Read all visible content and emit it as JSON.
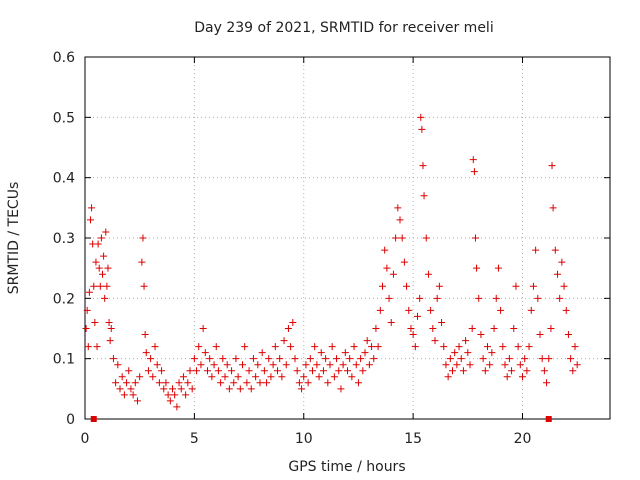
{
  "chart_data": {
    "type": "scatter",
    "title": "Day 239 of 2021, SRMTID for receiver meli",
    "xlabel": "GPS time / hours",
    "ylabel": "SRMTID / TECUs",
    "xlim": [
      0,
      24
    ],
    "ylim": [
      0,
      0.6
    ],
    "xticks": [
      0,
      5,
      10,
      15,
      20
    ],
    "xtick_labels": [
      "0",
      "5",
      "10",
      "15",
      "20"
    ],
    "yticks": [
      0,
      0.1,
      0.2,
      0.3,
      0.4,
      0.5,
      0.6
    ],
    "ytick_labels": [
      "0",
      "0.1",
      "0.2",
      "0.3",
      "0.4",
      "0.5",
      "0.6"
    ],
    "grid": true,
    "marker": "+",
    "color": "#dd0000",
    "gap_markers_x": [
      0.4,
      21.2
    ],
    "series": [
      {
        "name": "SRMTID",
        "points": [
          [
            0.05,
            0.15
          ],
          [
            0.1,
            0.18
          ],
          [
            0.15,
            0.12
          ],
          [
            0.2,
            0.21
          ],
          [
            0.25,
            0.33
          ],
          [
            0.3,
            0.35
          ],
          [
            0.35,
            0.29
          ],
          [
            0.4,
            0.22
          ],
          [
            0.45,
            0.16
          ],
          [
            0.5,
            0.26
          ],
          [
            0.55,
            0.12
          ],
          [
            0.6,
            0.29
          ],
          [
            0.65,
            0.25
          ],
          [
            0.7,
            0.22
          ],
          [
            0.75,
            0.3
          ],
          [
            0.8,
            0.24
          ],
          [
            0.85,
            0.27
          ],
          [
            0.9,
            0.2
          ],
          [
            0.95,
            0.31
          ],
          [
            1.0,
            0.22
          ],
          [
            1.05,
            0.25
          ],
          [
            1.1,
            0.16
          ],
          [
            1.15,
            0.13
          ],
          [
            1.2,
            0.15
          ],
          [
            1.3,
            0.1
          ],
          [
            1.4,
            0.06
          ],
          [
            1.5,
            0.09
          ],
          [
            1.6,
            0.05
          ],
          [
            1.7,
            0.07
          ],
          [
            1.8,
            0.04
          ],
          [
            1.9,
            0.06
          ],
          [
            2.0,
            0.08
          ],
          [
            2.1,
            0.05
          ],
          [
            2.2,
            0.04
          ],
          [
            2.3,
            0.06
          ],
          [
            2.4,
            0.03
          ],
          [
            2.5,
            0.07
          ],
          [
            2.6,
            0.26
          ],
          [
            2.65,
            0.3
          ],
          [
            2.7,
            0.22
          ],
          [
            2.75,
            0.14
          ],
          [
            2.8,
            0.11
          ],
          [
            2.9,
            0.08
          ],
          [
            3.0,
            0.1
          ],
          [
            3.1,
            0.07
          ],
          [
            3.2,
            0.12
          ],
          [
            3.3,
            0.09
          ],
          [
            3.4,
            0.06
          ],
          [
            3.5,
            0.08
          ],
          [
            3.6,
            0.05
          ],
          [
            3.7,
            0.06
          ],
          [
            3.8,
            0.04
          ],
          [
            3.9,
            0.03
          ],
          [
            4.0,
            0.05
          ],
          [
            4.1,
            0.04
          ],
          [
            4.2,
            0.02
          ],
          [
            4.3,
            0.06
          ],
          [
            4.4,
            0.05
          ],
          [
            4.5,
            0.07
          ],
          [
            4.6,
            0.04
          ],
          [
            4.7,
            0.06
          ],
          [
            4.8,
            0.08
          ],
          [
            4.9,
            0.05
          ],
          [
            5.0,
            0.1
          ],
          [
            5.1,
            0.08
          ],
          [
            5.2,
            0.12
          ],
          [
            5.3,
            0.09
          ],
          [
            5.4,
            0.15
          ],
          [
            5.5,
            0.11
          ],
          [
            5.6,
            0.08
          ],
          [
            5.7,
            0.1
          ],
          [
            5.8,
            0.07
          ],
          [
            5.9,
            0.09
          ],
          [
            6.0,
            0.12
          ],
          [
            6.1,
            0.08
          ],
          [
            6.2,
            0.06
          ],
          [
            6.3,
            0.1
          ],
          [
            6.4,
            0.07
          ],
          [
            6.5,
            0.09
          ],
          [
            6.6,
            0.05
          ],
          [
            6.7,
            0.08
          ],
          [
            6.8,
            0.06
          ],
          [
            6.9,
            0.1
          ],
          [
            7.0,
            0.07
          ],
          [
            7.1,
            0.05
          ],
          [
            7.2,
            0.09
          ],
          [
            7.3,
            0.12
          ],
          [
            7.4,
            0.06
          ],
          [
            7.5,
            0.08
          ],
          [
            7.6,
            0.05
          ],
          [
            7.7,
            0.1
          ],
          [
            7.8,
            0.07
          ],
          [
            7.9,
            0.09
          ],
          [
            8.0,
            0.06
          ],
          [
            8.1,
            0.11
          ],
          [
            8.2,
            0.08
          ],
          [
            8.3,
            0.06
          ],
          [
            8.4,
            0.1
          ],
          [
            8.5,
            0.07
          ],
          [
            8.6,
            0.09
          ],
          [
            8.7,
            0.12
          ],
          [
            8.8,
            0.08
          ],
          [
            8.9,
            0.1
          ],
          [
            9.0,
            0.07
          ],
          [
            9.1,
            0.13
          ],
          [
            9.2,
            0.09
          ],
          [
            9.3,
            0.15
          ],
          [
            9.4,
            0.12
          ],
          [
            9.5,
            0.16
          ],
          [
            9.6,
            0.1
          ],
          [
            9.7,
            0.08
          ],
          [
            9.8,
            0.06
          ],
          [
            9.9,
            0.05
          ],
          [
            10.0,
            0.07
          ],
          [
            10.1,
            0.09
          ],
          [
            10.2,
            0.06
          ],
          [
            10.3,
            0.1
          ],
          [
            10.4,
            0.08
          ],
          [
            10.5,
            0.12
          ],
          [
            10.6,
            0.09
          ],
          [
            10.7,
            0.07
          ],
          [
            10.8,
            0.11
          ],
          [
            10.9,
            0.08
          ],
          [
            11.0,
            0.1
          ],
          [
            11.1,
            0.06
          ],
          [
            11.2,
            0.09
          ],
          [
            11.3,
            0.12
          ],
          [
            11.4,
            0.07
          ],
          [
            11.5,
            0.1
          ],
          [
            11.6,
            0.08
          ],
          [
            11.7,
            0.05
          ],
          [
            11.8,
            0.09
          ],
          [
            11.9,
            0.11
          ],
          [
            12.0,
            0.08
          ],
          [
            12.1,
            0.1
          ],
          [
            12.2,
            0.07
          ],
          [
            12.3,
            0.12
          ],
          [
            12.4,
            0.09
          ],
          [
            12.5,
            0.06
          ],
          [
            12.6,
            0.1
          ],
          [
            12.7,
            0.08
          ],
          [
            12.8,
            0.11
          ],
          [
            12.9,
            0.13
          ],
          [
            13.0,
            0.09
          ],
          [
            13.1,
            0.12
          ],
          [
            13.2,
            0.1
          ],
          [
            13.3,
            0.15
          ],
          [
            13.4,
            0.12
          ],
          [
            13.5,
            0.18
          ],
          [
            13.6,
            0.22
          ],
          [
            13.7,
            0.28
          ],
          [
            13.8,
            0.25
          ],
          [
            13.9,
            0.2
          ],
          [
            14.0,
            0.16
          ],
          [
            14.1,
            0.24
          ],
          [
            14.2,
            0.3
          ],
          [
            14.3,
            0.35
          ],
          [
            14.4,
            0.33
          ],
          [
            14.5,
            0.3
          ],
          [
            14.6,
            0.26
          ],
          [
            14.7,
            0.22
          ],
          [
            14.8,
            0.18
          ],
          [
            14.9,
            0.15
          ],
          [
            15.0,
            0.14
          ],
          [
            15.1,
            0.12
          ],
          [
            15.2,
            0.17
          ],
          [
            15.3,
            0.2
          ],
          [
            15.35,
            0.5
          ],
          [
            15.4,
            0.48
          ],
          [
            15.45,
            0.42
          ],
          [
            15.5,
            0.37
          ],
          [
            15.6,
            0.3
          ],
          [
            15.7,
            0.24
          ],
          [
            15.8,
            0.18
          ],
          [
            15.9,
            0.15
          ],
          [
            16.0,
            0.13
          ],
          [
            16.1,
            0.2
          ],
          [
            16.2,
            0.22
          ],
          [
            16.3,
            0.16
          ],
          [
            16.4,
            0.12
          ],
          [
            16.5,
            0.09
          ],
          [
            16.6,
            0.07
          ],
          [
            16.7,
            0.1
          ],
          [
            16.8,
            0.08
          ],
          [
            16.9,
            0.11
          ],
          [
            17.0,
            0.09
          ],
          [
            17.1,
            0.12
          ],
          [
            17.2,
            0.1
          ],
          [
            17.3,
            0.08
          ],
          [
            17.4,
            0.13
          ],
          [
            17.5,
            0.11
          ],
          [
            17.6,
            0.09
          ],
          [
            17.7,
            0.15
          ],
          [
            17.75,
            0.43
          ],
          [
            17.8,
            0.41
          ],
          [
            17.85,
            0.3
          ],
          [
            17.9,
            0.25
          ],
          [
            18.0,
            0.2
          ],
          [
            18.1,
            0.14
          ],
          [
            18.2,
            0.1
          ],
          [
            18.3,
            0.08
          ],
          [
            18.4,
            0.12
          ],
          [
            18.5,
            0.09
          ],
          [
            18.6,
            0.11
          ],
          [
            18.7,
            0.15
          ],
          [
            18.8,
            0.2
          ],
          [
            18.9,
            0.25
          ],
          [
            19.0,
            0.18
          ],
          [
            19.1,
            0.12
          ],
          [
            19.2,
            0.09
          ],
          [
            19.3,
            0.07
          ],
          [
            19.4,
            0.1
          ],
          [
            19.5,
            0.08
          ],
          [
            19.6,
            0.15
          ],
          [
            19.7,
            0.22
          ],
          [
            19.8,
            0.12
          ],
          [
            19.9,
            0.09
          ],
          [
            20.0,
            0.07
          ],
          [
            20.1,
            0.1
          ],
          [
            20.2,
            0.08
          ],
          [
            20.3,
            0.12
          ],
          [
            20.4,
            0.18
          ],
          [
            20.5,
            0.22
          ],
          [
            20.6,
            0.28
          ],
          [
            20.7,
            0.2
          ],
          [
            20.8,
            0.14
          ],
          [
            20.9,
            0.1
          ],
          [
            21.0,
            0.08
          ],
          [
            21.1,
            0.06
          ],
          [
            21.2,
            0.1
          ],
          [
            21.3,
            0.15
          ],
          [
            21.35,
            0.42
          ],
          [
            21.4,
            0.35
          ],
          [
            21.5,
            0.28
          ],
          [
            21.6,
            0.24
          ],
          [
            21.7,
            0.2
          ],
          [
            21.8,
            0.26
          ],
          [
            21.9,
            0.22
          ],
          [
            22.0,
            0.18
          ],
          [
            22.1,
            0.14
          ],
          [
            22.2,
            0.1
          ],
          [
            22.3,
            0.08
          ],
          [
            22.4,
            0.12
          ],
          [
            22.5,
            0.09
          ]
        ]
      }
    ]
  }
}
